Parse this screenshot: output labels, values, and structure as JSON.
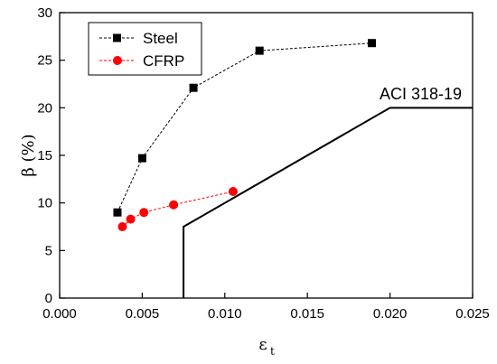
{
  "chart_data": {
    "type": "line",
    "title": "",
    "xlabel": "ε",
    "xlabel_subscript": "t",
    "ylabel": "β (%)",
    "xlim": [
      0.0,
      0.025
    ],
    "ylim": [
      0,
      30
    ],
    "x_ticks": [
      "0.000",
      "0.005",
      "0.010",
      "0.015",
      "0.020",
      "0.025"
    ],
    "y_ticks": [
      "0",
      "5",
      "10",
      "15",
      "20",
      "25",
      "30"
    ],
    "grid": false,
    "legend_position": "top-left",
    "series": [
      {
        "name": "Steel",
        "marker": "square",
        "line_style": "dashed",
        "color": "#000000",
        "x": [
          0.0035,
          0.005,
          0.0081,
          0.0121,
          0.0189
        ],
        "y": [
          9.0,
          14.7,
          22.1,
          26.0,
          26.8
        ]
      },
      {
        "name": "CFRP",
        "marker": "circle",
        "line_style": "dashed",
        "color": "#ff0000",
        "x": [
          0.0038,
          0.0043,
          0.0051,
          0.0069,
          0.0105
        ],
        "y": [
          7.5,
          8.3,
          9.0,
          9.8,
          11.2
        ]
      },
      {
        "name": "",
        "marker": "none",
        "line_style": "solid",
        "color": "#000000",
        "x": [
          0.0075,
          0.0075,
          0.02,
          0.025
        ],
        "y": [
          0,
          7.5,
          20,
          20
        ]
      }
    ],
    "annotations": [
      {
        "text": "ACI 318-19"
      }
    ]
  }
}
